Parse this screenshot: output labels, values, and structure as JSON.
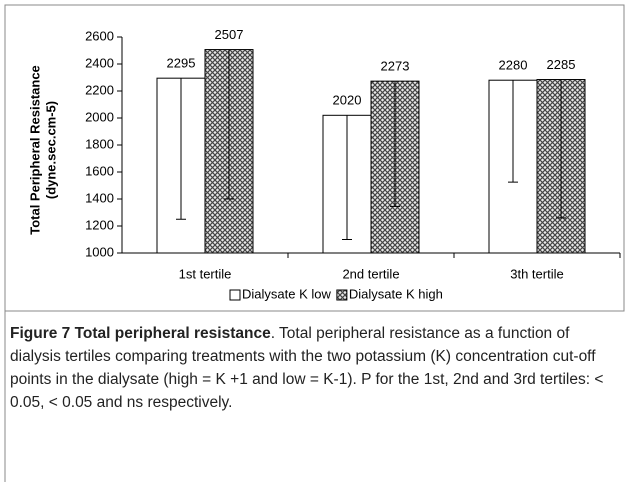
{
  "chart_data": {
    "type": "bar",
    "y_label": [
      "Total Peripheral Resistance",
      "(dyne.sec.cm-5)"
    ],
    "categories": [
      "1st tertile",
      "2nd tertile",
      "3th tertile"
    ],
    "series": [
      {
        "name": "Dialysate K low",
        "color": "#ffffff",
        "values": [
          2295,
          2020,
          2280
        ],
        "errors": [
          1045,
          920,
          755
        ]
      },
      {
        "name": "Dialysate K high",
        "color": "#444444",
        "hatch": true,
        "values": [
          2507,
          2273,
          2285
        ],
        "errors": [
          1107,
          928,
          1025
        ]
      }
    ],
    "ylim": [
      1000,
      2600
    ],
    "yticks": [
      1000,
      1200,
      1400,
      1600,
      1800,
      2000,
      2200,
      2400,
      2600
    ],
    "legend": "bottom"
  },
  "caption": {
    "label": "Figure 7 Total peripheral resistance",
    "text": ". Total peripheral resistance as a function of dialysis tertiles comparing treatments with the two potassium (K) concentration cut-off points in the dialysate (high = K +1 and low = K-1). P for the 1st, 2nd and 3rd tertiles: < 0.05, < 0.05 and ns respectively."
  }
}
